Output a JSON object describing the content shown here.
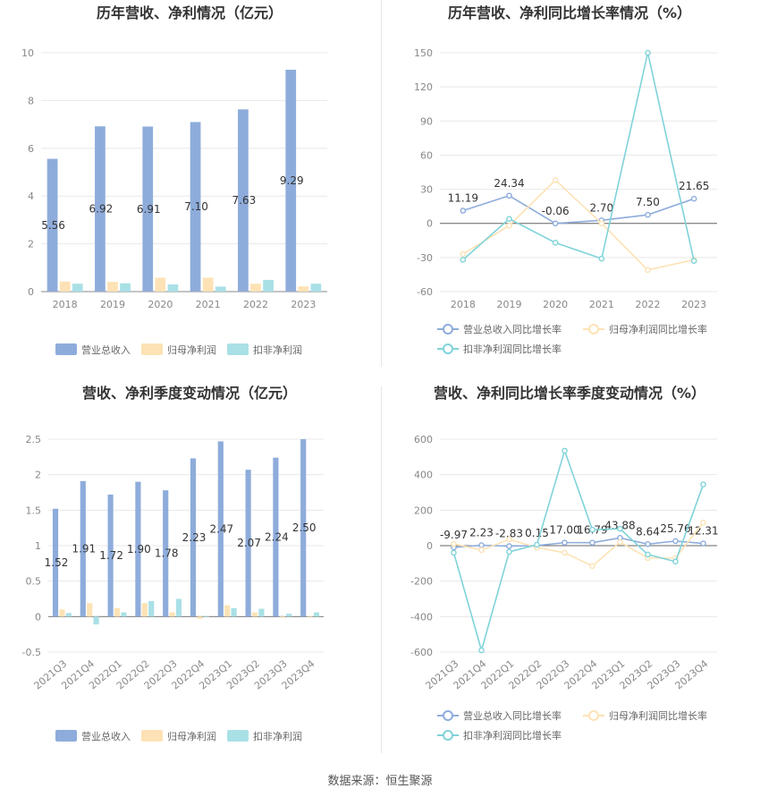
{
  "colors": {
    "revenue": "#8eacdb",
    "net_profit": "#fde2b5",
    "deducted_profit": "#a9e0e6",
    "revenue_line": "#8eacdb",
    "net_line": "#fde2b5",
    "deducted_line": "#7fd3d9",
    "grid": "#e8e8e8",
    "axis_text": "#888888"
  },
  "footer": {
    "source": "数据来源：恒生聚源"
  },
  "chart_data": [
    {
      "id": "annual-bar",
      "type": "bar",
      "title": "历年营收、净利情况（亿元）",
      "categories": [
        "2018",
        "2019",
        "2020",
        "2021",
        "2022",
        "2023"
      ],
      "series": [
        {
          "name": "营业总收入",
          "values": [
            5.56,
            6.92,
            6.91,
            7.1,
            7.63,
            9.29
          ],
          "labels": [
            "5.56",
            "6.92",
            "6.91",
            "7.10",
            "7.63",
            "9.29"
          ]
        },
        {
          "name": "归母净利润",
          "values": [
            0.42,
            0.41,
            0.58,
            0.58,
            0.33,
            0.22
          ]
        },
        {
          "name": "扣非净利润",
          "values": [
            0.33,
            0.35,
            0.3,
            0.21,
            0.49,
            0.33
          ]
        }
      ],
      "yticks": [
        "0",
        "2",
        "4",
        "6",
        "8",
        "10"
      ],
      "ylim": [
        0,
        10
      ],
      "grid": true,
      "legend": "bottom"
    },
    {
      "id": "annual-line",
      "type": "line",
      "title": "历年营收、净利同比增长率情况（%）",
      "categories": [
        "2018",
        "2019",
        "2020",
        "2021",
        "2022",
        "2023"
      ],
      "series": [
        {
          "name": "营业总收入同比增长率",
          "values": [
            11.19,
            24.34,
            -0.06,
            2.7,
            7.5,
            21.65
          ],
          "labels": [
            "11.19",
            "24.34",
            "-0.06",
            "2.70",
            "7.50",
            "21.65"
          ]
        },
        {
          "name": "归母净利润同比增长率",
          "values": [
            -27,
            -2,
            38,
            0,
            -41,
            -32
          ]
        },
        {
          "name": "扣非净利润同比增长率",
          "values": [
            -32,
            4,
            -17,
            -31,
            150,
            -33
          ]
        }
      ],
      "yticks": [
        "-60",
        "-30",
        "0",
        "30",
        "60",
        "90",
        "120",
        "150"
      ],
      "ylim": [
        -60,
        150
      ],
      "grid": true,
      "legend": "bottom"
    },
    {
      "id": "quarterly-bar",
      "type": "bar",
      "title": "营收、净利季度变动情况（亿元）",
      "categories": [
        "2021Q3",
        "2021Q4",
        "2022Q1",
        "2022Q2",
        "2022Q3",
        "2022Q4",
        "2023Q1",
        "2023Q2",
        "2023Q3",
        "2023Q4"
      ],
      "series": [
        {
          "name": "营业总收入",
          "values": [
            1.52,
            1.91,
            1.72,
            1.9,
            1.78,
            2.23,
            2.47,
            2.07,
            2.24,
            2.5
          ],
          "labels": [
            "1.52",
            "1.91",
            "1.72",
            "1.90",
            "1.78",
            "2.23",
            "2.47",
            "2.07",
            "2.24",
            "2.50"
          ]
        },
        {
          "name": "归母净利润",
          "values": [
            0.1,
            0.19,
            0.12,
            0.19,
            0.06,
            -0.03,
            0.16,
            0.06,
            0.0,
            0.01
          ]
        },
        {
          "name": "扣非净利润",
          "values": [
            0.05,
            -0.11,
            0.06,
            0.22,
            0.25,
            0.01,
            0.12,
            0.11,
            0.04,
            0.06
          ]
        }
      ],
      "yticks": [
        "-0.5",
        "0",
        "0.5",
        "1",
        "1.5",
        "2",
        "2.5"
      ],
      "ylim": [
        -0.5,
        2.5
      ],
      "grid": true,
      "legend": "bottom"
    },
    {
      "id": "quarterly-line",
      "type": "line",
      "title": "营收、净利同比增长率季度变动情况（%）",
      "categories": [
        "2021Q3",
        "2021Q4",
        "2022Q1",
        "2022Q2",
        "2022Q3",
        "2022Q4",
        "2023Q1",
        "2023Q2",
        "2023Q3",
        "2023Q4"
      ],
      "series": [
        {
          "name": "营业总收入同比增长率",
          "values": [
            -9.97,
            2.23,
            -2.83,
            0.15,
            17.0,
            16.79,
            43.88,
            8.64,
            25.76,
            12.31
          ],
          "labels": [
            "-9.97",
            "2.23",
            "-2.83",
            "0.15",
            "17.00",
            "16.79",
            "43.88",
            "8.64",
            "25.76",
            "12.31"
          ]
        },
        {
          "name": "归母净利润同比增长率",
          "values": [
            10,
            -25,
            35,
            -10,
            -40,
            -115,
            20,
            -70,
            -70,
            130
          ]
        },
        {
          "name": "扣非净利润同比增长率",
          "values": [
            -40,
            -590,
            -35,
            5,
            535,
            90,
            95,
            -50,
            -90,
            345
          ]
        }
      ],
      "yticks": [
        "-600",
        "-400",
        "-200",
        "0",
        "200",
        "400",
        "600"
      ],
      "ylim": [
        -600,
        600
      ],
      "grid": true,
      "legend": "bottom"
    }
  ]
}
